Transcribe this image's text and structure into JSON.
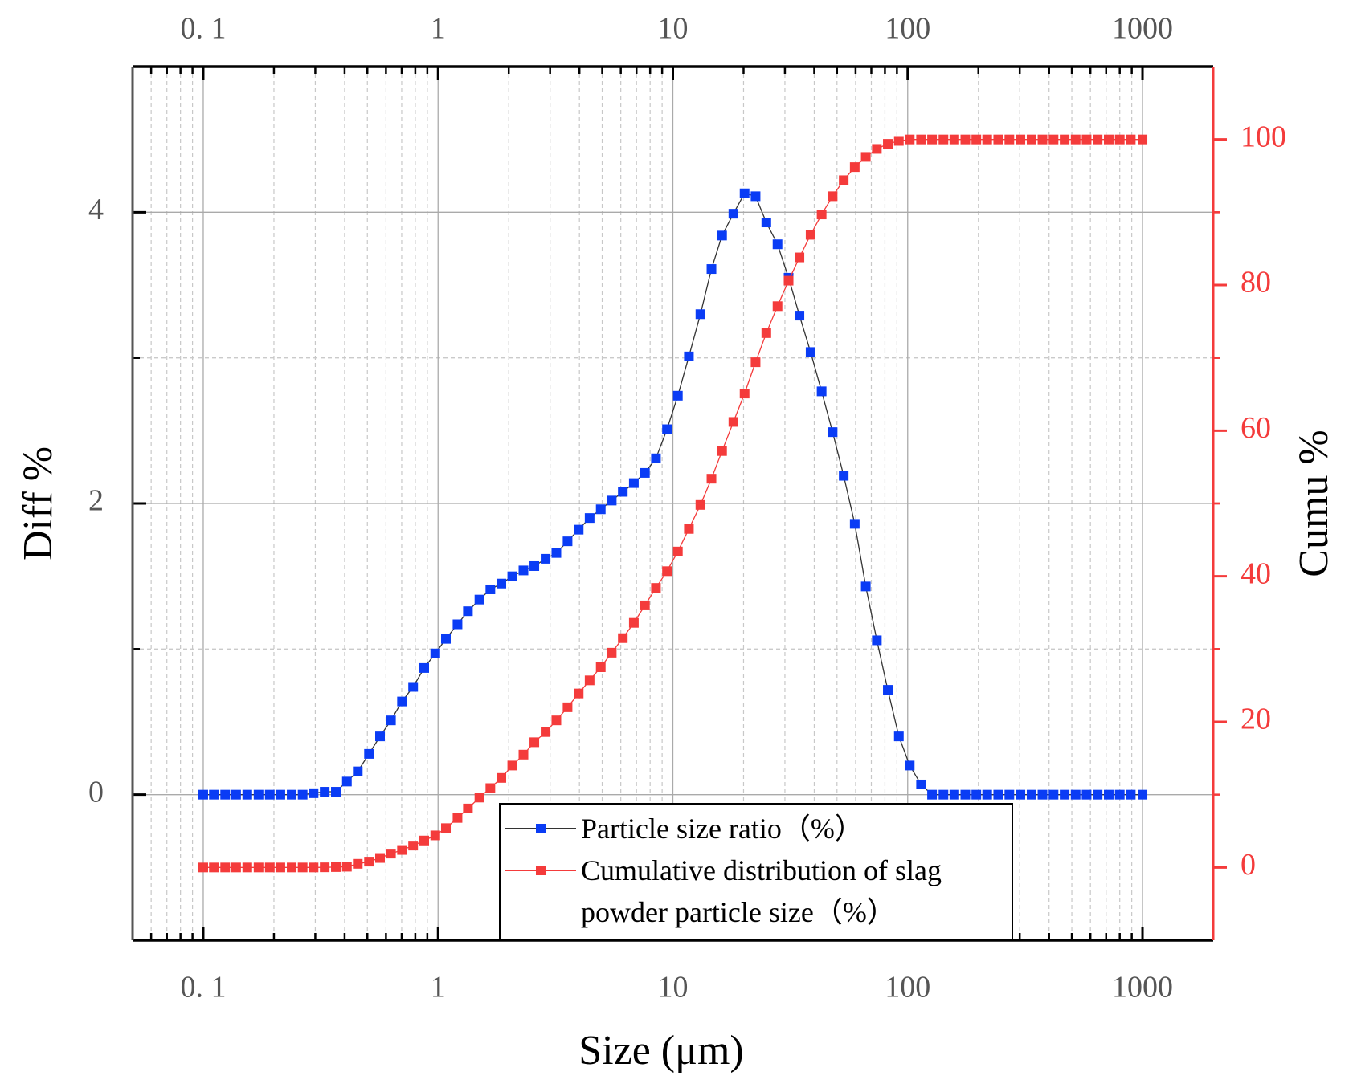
{
  "chart_data": {
    "type": "line",
    "x_scale": "log",
    "x_label": "Size (μm)",
    "y_label": "Diff %",
    "y2_label": "Cumu %",
    "x": [
      0.1,
      0.111,
      0.124,
      0.138,
      0.154,
      0.172,
      0.192,
      0.213,
      0.238,
      0.265,
      0.295,
      0.329,
      0.367,
      0.409,
      0.455,
      0.508,
      0.566,
      0.63,
      0.702,
      0.783,
      0.873,
      0.973,
      1.08,
      1.21,
      1.34,
      1.5,
      1.67,
      1.86,
      2.07,
      2.31,
      2.57,
      2.87,
      3.19,
      3.56,
      3.97,
      4.42,
      4.93,
      5.49,
      6.12,
      6.82,
      7.6,
      8.47,
      9.44,
      10.5,
      11.7,
      13.1,
      14.6,
      16.2,
      18.1,
      20.2,
      22.5,
      25,
      27.9,
      31.1,
      34.6,
      38.6,
      43,
      47.9,
      53.4,
      59.5,
      66.3,
      73.9,
      82.3,
      91.7,
      102,
      114,
      127,
      142,
      158,
      176,
      196,
      218,
      243,
      271,
      302,
      337,
      375,
      418,
      466,
      519,
      578,
      644,
      718,
      800,
      891,
      1000
    ],
    "series": [
      {
        "name": "Particle size ratio（%）",
        "color": "#0a3cf5",
        "line_color": "#333333",
        "axis": "y",
        "values": [
          0,
          0,
          0,
          0,
          0,
          0,
          0,
          0,
          0,
          0,
          0.01,
          0.02,
          0.02,
          0.09,
          0.16,
          0.28,
          0.4,
          0.51,
          0.64,
          0.74,
          0.87,
          0.97,
          1.07,
          1.17,
          1.26,
          1.34,
          1.41,
          1.45,
          1.5,
          1.54,
          1.57,
          1.62,
          1.66,
          1.74,
          1.82,
          1.9,
          1.96,
          2.02,
          2.08,
          2.14,
          2.21,
          2.31,
          2.51,
          2.74,
          3.01,
          3.3,
          3.61,
          3.84,
          3.99,
          4.13,
          4.11,
          3.93,
          3.78,
          3.55,
          3.29,
          3.04,
          2.77,
          2.49,
          2.19,
          1.86,
          1.43,
          1.06,
          0.72,
          0.4,
          0.2,
          0.07,
          0,
          0,
          0,
          0,
          0,
          0,
          0,
          0,
          0,
          0,
          0,
          0,
          0,
          0,
          0,
          0,
          0,
          0,
          0,
          0
        ]
      },
      {
        "name": "Cumulative distribution of slag powder particle size（%）",
        "color": "#f43b3b",
        "line_color": "#f43b3b",
        "axis": "y2",
        "values": [
          0,
          0,
          0,
          0,
          0,
          0,
          0,
          0,
          0,
          0,
          0,
          0.02,
          0.05,
          0.1,
          0.5,
          0.8,
          1.3,
          1.9,
          2.4,
          3.0,
          3.7,
          4.4,
          5.4,
          6.8,
          8.1,
          9.6,
          10.9,
          12.3,
          14.0,
          15.5,
          17.2,
          18.6,
          20.2,
          22.0,
          23.9,
          25.7,
          27.5,
          29.5,
          31.5,
          33.6,
          36.0,
          38.4,
          40.7,
          43.4,
          46.5,
          49.8,
          53.4,
          57.2,
          61.2,
          65.1,
          69.4,
          73.4,
          77.1,
          80.6,
          83.8,
          86.9,
          89.7,
          92.2,
          94.4,
          96.2,
          97.6,
          98.7,
          99.4,
          99.8,
          100,
          100,
          100,
          100,
          100,
          100,
          100,
          100,
          100,
          100,
          100,
          100,
          100,
          100,
          100,
          100,
          100,
          100,
          100,
          100,
          100,
          100
        ]
      }
    ],
    "xlim": [
      0.05,
      2000
    ],
    "xticks": [
      {
        "value": 0.1,
        "label": "0. 1"
      },
      1,
      10,
      100,
      1000
    ],
    "ylim": [
      -1,
      5
    ],
    "yticks": [
      0,
      2,
      4
    ],
    "y2lim": [
      -10,
      110
    ],
    "y2ticks": [
      0,
      20,
      40,
      60,
      80,
      100
    ],
    "y2_color": "#f43b3b",
    "grid": true
  }
}
